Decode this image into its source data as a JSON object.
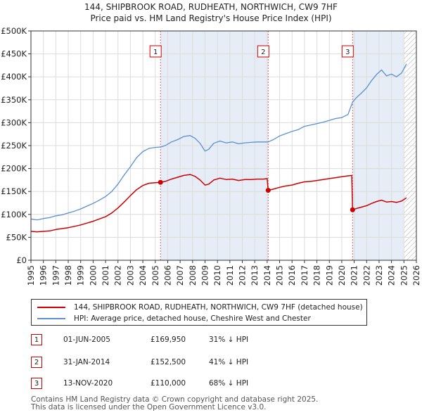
{
  "title_line1": "144, SHIPBROOK ROAD, RUDHEATH, NORTHWICH, CW9 7HF",
  "title_line2": "Price paid vs. HM Land Registry's House Price Index (HPI)",
  "chart_data": {
    "type": "line",
    "ylim": [
      0,
      500000
    ],
    "xlim": [
      1995,
      2026
    ],
    "yticks": [
      0,
      50000,
      100000,
      150000,
      200000,
      250000,
      300000,
      350000,
      400000,
      450000,
      500000
    ],
    "ytick_labels": [
      "£0",
      "£50K",
      "£100K",
      "£150K",
      "£200K",
      "£250K",
      "£300K",
      "£350K",
      "£400K",
      "£450K",
      "£500K"
    ],
    "xticks": [
      1995,
      1996,
      1997,
      1998,
      1999,
      2000,
      2001,
      2002,
      2003,
      2004,
      2005,
      2006,
      2007,
      2008,
      2009,
      2010,
      2011,
      2012,
      2013,
      2014,
      2015,
      2016,
      2017,
      2018,
      2019,
      2020,
      2021,
      2022,
      2023,
      2024,
      2025,
      2026
    ],
    "xtick_labels": [
      "1995",
      "1996",
      "1997",
      "1998",
      "1999",
      "2000",
      "2001",
      "2002",
      "2003",
      "2004",
      "2005",
      "2006",
      "2007",
      "2008",
      "2009",
      "2010",
      "2011",
      "2012",
      "2013",
      "2014",
      "2015",
      "2016",
      "2017",
      "2018",
      "2019",
      "2020",
      "2021",
      "2022",
      "2023",
      "2024",
      "2025",
      "2026"
    ],
    "shaded_periods": [
      [
        2005.42,
        2014.08
      ],
      [
        2020.87,
        2025.0
      ]
    ],
    "hatched_from": 2025.0,
    "series": [
      {
        "name": "HPI: Average price, detached house, Cheshire West and Chester",
        "color": "#5b8fd0",
        "x": [
          1995.0,
          1995.5,
          1996.0,
          1996.5,
          1997.0,
          1997.5,
          1998.0,
          1998.5,
          1999.0,
          1999.5,
          2000.0,
          2000.5,
          2001.0,
          2001.5,
          2002.0,
          2002.5,
          2003.0,
          2003.5,
          2004.0,
          2004.5,
          2005.0,
          2005.42,
          2005.8,
          2006.3,
          2006.8,
          2007.3,
          2007.8,
          2008.2,
          2008.6,
          2009.0,
          2009.3,
          2009.7,
          2010.2,
          2010.7,
          2011.2,
          2011.7,
          2012.2,
          2012.7,
          2013.2,
          2013.7,
          2014.08,
          2014.5,
          2015.0,
          2015.5,
          2016.0,
          2016.5,
          2017.0,
          2017.5,
          2018.0,
          2018.5,
          2019.0,
          2019.5,
          2020.0,
          2020.5,
          2020.87,
          2021.2,
          2021.6,
          2022.0,
          2022.4,
          2022.8,
          2023.2,
          2023.6,
          2024.0,
          2024.4,
          2024.8,
          2025.2
        ],
        "values": [
          90000,
          88000,
          91000,
          93000,
          97000,
          99000,
          103000,
          107000,
          112000,
          118000,
          124000,
          131000,
          139000,
          150000,
          166000,
          186000,
          204000,
          224000,
          237000,
          244000,
          246000,
          247000,
          250000,
          258000,
          263000,
          270000,
          272000,
          266000,
          255000,
          238000,
          242000,
          255000,
          260000,
          256000,
          258000,
          254000,
          256000,
          257000,
          258000,
          258000,
          258000,
          263000,
          271000,
          276000,
          281000,
          285000,
          292000,
          295000,
          298000,
          301000,
          305000,
          309000,
          311000,
          318000,
          345000,
          355000,
          365000,
          376000,
          392000,
          405000,
          415000,
          402000,
          406000,
          400000,
          408000,
          428000
        ]
      },
      {
        "name": "144, SHIPBROOK ROAD, RUDHEATH, NORTHWICH, CW9 7HF (detached house)",
        "color": "#cc0000",
        "x": [
          1995.0,
          1995.5,
          1996.0,
          1996.5,
          1997.0,
          1997.5,
          1998.0,
          1998.5,
          1999.0,
          1999.5,
          2000.0,
          2000.5,
          2001.0,
          2001.5,
          2002.0,
          2002.5,
          2003.0,
          2003.5,
          2004.0,
          2004.5,
          2005.0,
          2005.42,
          2005.8,
          2006.3,
          2006.8,
          2007.3,
          2007.8,
          2008.2,
          2008.6,
          2009.0,
          2009.3,
          2009.7,
          2010.2,
          2010.7,
          2011.2,
          2011.7,
          2012.2,
          2012.7,
          2013.2,
          2013.7,
          2014.0,
          2014.08,
          2014.5,
          2015.0,
          2015.5,
          2016.0,
          2016.5,
          2017.0,
          2017.5,
          2018.0,
          2018.5,
          2019.0,
          2019.5,
          2020.0,
          2020.5,
          2020.8,
          2020.87,
          2021.2,
          2021.6,
          2022.0,
          2022.4,
          2022.8,
          2023.2,
          2023.6,
          2024.0,
          2024.4,
          2024.8,
          2025.2
        ],
        "values": [
          63000,
          62000,
          63000,
          64000,
          67000,
          69000,
          71000,
          74000,
          77000,
          81000,
          85000,
          90000,
          95000,
          103000,
          114000,
          127000,
          141000,
          154000,
          163000,
          168000,
          169000,
          169950,
          172000,
          177000,
          181000,
          185000,
          187000,
          183000,
          175000,
          164000,
          166000,
          175000,
          179000,
          176000,
          177000,
          174000,
          176000,
          176000,
          177000,
          177000,
          178000,
          152500,
          155000,
          159000,
          162000,
          164000,
          168000,
          171000,
          172000,
          174000,
          176000,
          178000,
          180000,
          182000,
          184000,
          185000,
          110000,
          113000,
          116000,
          119000,
          124000,
          128000,
          131000,
          127000,
          128000,
          126000,
          129000,
          136000
        ]
      }
    ],
    "sales": [
      {
        "label": "1",
        "x": 2005.42,
        "value": 169950
      },
      {
        "label": "2",
        "x": 2014.08,
        "value": 152500
      },
      {
        "label": "3",
        "x": 2020.87,
        "value": 110000
      }
    ]
  },
  "legend": {
    "property_label": "144, SHIPBROOK ROAD, RUDHEATH, NORTHWICH, CW9 7HF (detached house)",
    "hpi_label": "HPI: Average price, detached house, Cheshire West and Chester",
    "property_color": "#cc0000",
    "hpi_color": "#5b8fd0"
  },
  "transactions": [
    {
      "label": "1",
      "date": "01-JUN-2005",
      "price": "£169,950",
      "hpi": "31% ↓ HPI"
    },
    {
      "label": "2",
      "date": "31-JAN-2014",
      "price": "£152,500",
      "hpi": "41% ↓ HPI"
    },
    {
      "label": "3",
      "date": "13-NOV-2020",
      "price": "£110,000",
      "hpi": "68% ↓ HPI"
    }
  ],
  "footer_line1": "Contains HM Land Registry data © Crown copyright and database right 2025.",
  "footer_line2": "This data is licensed under the Open Government Licence v3.0."
}
